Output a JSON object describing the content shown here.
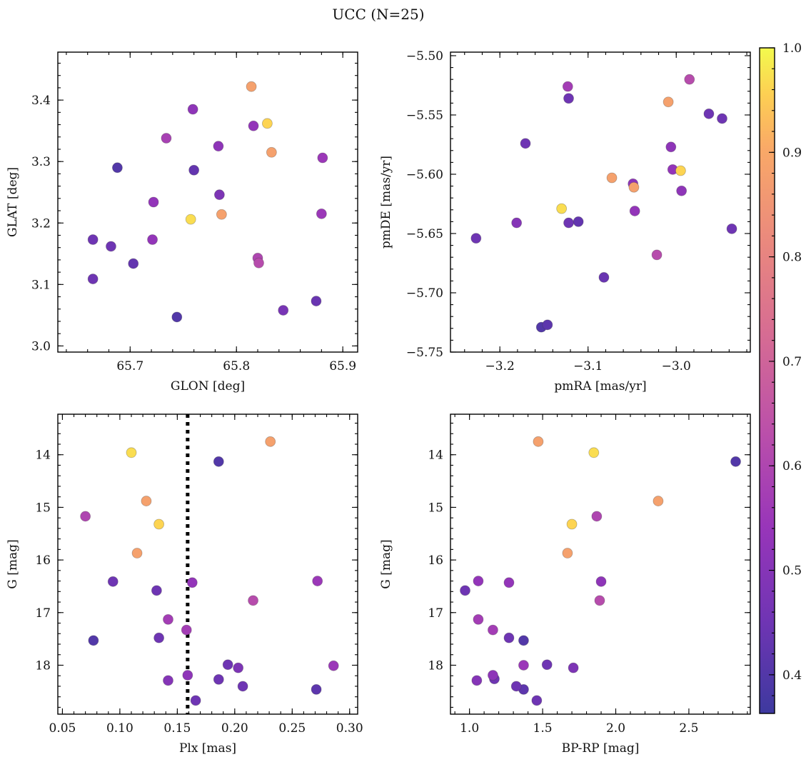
{
  "figure": {
    "title": "UCC (N=25)"
  },
  "colorbar": {
    "min": 0.363,
    "max": 1.0,
    "ticks": [
      0.4,
      0.5,
      0.6,
      0.7,
      0.8,
      0.9,
      1.0
    ],
    "tick_labels": [
      "0.4",
      "0.5",
      "0.6",
      "0.7",
      "0.8",
      "0.9",
      "1.0"
    ],
    "colormap": "plasma"
  },
  "chart_data": [
    {
      "type": "scatter",
      "id": "glon-glat",
      "xlabel": "GLON [deg]",
      "ylabel": "GLAT [deg]",
      "xlim": [
        65.632,
        65.914
      ],
      "ylim": [
        2.99,
        3.478
      ],
      "xticks": [
        65.7,
        65.8,
        65.9
      ],
      "xtick_labels": [
        "65.7",
        "65.8",
        "65.9"
      ],
      "yticks": [
        3.0,
        3.1,
        3.2,
        3.3,
        3.4
      ],
      "ytick_labels": [
        "3.0",
        "3.1",
        "3.2",
        "3.3",
        "3.4"
      ],
      "invert_y": false,
      "points": [
        {
          "x": 65.814,
          "y": 3.422,
          "c": 0.88
        },
        {
          "x": 65.829,
          "y": 3.362,
          "c": 0.96
        },
        {
          "x": 65.759,
          "y": 3.385,
          "c": 0.52
        },
        {
          "x": 65.816,
          "y": 3.358,
          "c": 0.53
        },
        {
          "x": 65.734,
          "y": 3.338,
          "c": 0.58
        },
        {
          "x": 65.783,
          "y": 3.325,
          "c": 0.52
        },
        {
          "x": 65.833,
          "y": 3.315,
          "c": 0.88
        },
        {
          "x": 65.881,
          "y": 3.306,
          "c": 0.55
        },
        {
          "x": 65.688,
          "y": 3.29,
          "c": 0.4
        },
        {
          "x": 65.76,
          "y": 3.286,
          "c": 0.43
        },
        {
          "x": 65.784,
          "y": 3.246,
          "c": 0.48
        },
        {
          "x": 65.722,
          "y": 3.234,
          "c": 0.53
        },
        {
          "x": 65.786,
          "y": 3.214,
          "c": 0.88
        },
        {
          "x": 65.88,
          "y": 3.215,
          "c": 0.55
        },
        {
          "x": 65.757,
          "y": 3.206,
          "c": 0.97
        },
        {
          "x": 65.665,
          "y": 3.173,
          "c": 0.45
        },
        {
          "x": 65.721,
          "y": 3.173,
          "c": 0.53
        },
        {
          "x": 65.682,
          "y": 3.162,
          "c": 0.45
        },
        {
          "x": 65.82,
          "y": 3.143,
          "c": 0.6
        },
        {
          "x": 65.821,
          "y": 3.135,
          "c": 0.62
        },
        {
          "x": 65.703,
          "y": 3.134,
          "c": 0.43
        },
        {
          "x": 65.665,
          "y": 3.109,
          "c": 0.45
        },
        {
          "x": 65.875,
          "y": 3.073,
          "c": 0.44
        },
        {
          "x": 65.844,
          "y": 3.058,
          "c": 0.47
        },
        {
          "x": 65.744,
          "y": 3.047,
          "c": 0.4
        }
      ]
    },
    {
      "type": "scatter",
      "id": "pmra-pmde",
      "xlabel": "pmRA [mas/yr]",
      "ylabel": "pmDE [mas/yr]",
      "xlim": [
        -3.256,
        -2.916
      ],
      "ylim": [
        -5.75,
        -5.497
      ],
      "xticks": [
        -3.2,
        -3.1,
        -3.0
      ],
      "xtick_labels": [
        "−3.2",
        "−3.1",
        "−3.0"
      ],
      "yticks": [
        -5.75,
        -5.7,
        -5.65,
        -5.6,
        -5.55,
        -5.5
      ],
      "ytick_labels": [
        "−5.75",
        "−5.70",
        "−5.65",
        "−5.60",
        "−5.55",
        "−5.50"
      ],
      "invert_y": false,
      "points": [
        {
          "x": -2.985,
          "y": -5.52,
          "c": 0.62
        },
        {
          "x": -3.123,
          "y": -5.526,
          "c": 0.57
        },
        {
          "x": -3.122,
          "y": -5.536,
          "c": 0.45
        },
        {
          "x": -3.009,
          "y": -5.539,
          "c": 0.88
        },
        {
          "x": -2.963,
          "y": -5.549,
          "c": 0.45
        },
        {
          "x": -2.948,
          "y": -5.553,
          "c": 0.45
        },
        {
          "x": -3.171,
          "y": -5.574,
          "c": 0.45
        },
        {
          "x": -3.006,
          "y": -5.577,
          "c": 0.52
        },
        {
          "x": -3.004,
          "y": -5.596,
          "c": 0.53
        },
        {
          "x": -2.995,
          "y": -5.597,
          "c": 0.96
        },
        {
          "x": -3.073,
          "y": -5.603,
          "c": 0.88
        },
        {
          "x": -3.049,
          "y": -5.608,
          "c": 0.52
        },
        {
          "x": -3.048,
          "y": -5.611,
          "c": 0.88
        },
        {
          "x": -2.994,
          "y": -5.614,
          "c": 0.52
        },
        {
          "x": -3.13,
          "y": -5.629,
          "c": 0.97
        },
        {
          "x": -3.047,
          "y": -5.631,
          "c": 0.53
        },
        {
          "x": -3.111,
          "y": -5.64,
          "c": 0.43
        },
        {
          "x": -3.122,
          "y": -5.641,
          "c": 0.45
        },
        {
          "x": -3.181,
          "y": -5.641,
          "c": 0.5
        },
        {
          "x": -2.937,
          "y": -5.646,
          "c": 0.45
        },
        {
          "x": -3.227,
          "y": -5.654,
          "c": 0.45
        },
        {
          "x": -3.022,
          "y": -5.668,
          "c": 0.62
        },
        {
          "x": -3.082,
          "y": -5.687,
          "c": 0.44
        },
        {
          "x": -3.146,
          "y": -5.727,
          "c": 0.42
        },
        {
          "x": -3.153,
          "y": -5.729,
          "c": 0.4
        }
      ]
    },
    {
      "type": "scatter",
      "id": "plx-g",
      "xlabel": "Plx [mas]",
      "ylabel": "G [mag]",
      "xlim": [
        0.046,
        0.307
      ],
      "ylim": [
        13.23,
        18.93
      ],
      "xticks": [
        0.05,
        0.1,
        0.15,
        0.2,
        0.25,
        0.3
      ],
      "xtick_labels": [
        "0.05",
        "0.10",
        "0.15",
        "0.20",
        "0.25",
        "0.30"
      ],
      "yticks": [
        14,
        15,
        16,
        17,
        18
      ],
      "ytick_labels": [
        "14",
        "15",
        "16",
        "17",
        "18"
      ],
      "invert_y": true,
      "vline": {
        "x": 0.159,
        "style": "dotted"
      },
      "points": [
        {
          "x": 0.231,
          "y": 13.75,
          "c": 0.88
        },
        {
          "x": 0.11,
          "y": 13.96,
          "c": 0.97
        },
        {
          "x": 0.186,
          "y": 14.13,
          "c": 0.4
        },
        {
          "x": 0.123,
          "y": 14.88,
          "c": 0.88
        },
        {
          "x": 0.07,
          "y": 15.17,
          "c": 0.6
        },
        {
          "x": 0.134,
          "y": 15.32,
          "c": 0.96
        },
        {
          "x": 0.115,
          "y": 15.87,
          "c": 0.88
        },
        {
          "x": 0.094,
          "y": 16.41,
          "c": 0.45
        },
        {
          "x": 0.272,
          "y": 16.4,
          "c": 0.55
        },
        {
          "x": 0.163,
          "y": 16.43,
          "c": 0.53
        },
        {
          "x": 0.132,
          "y": 16.58,
          "c": 0.45
        },
        {
          "x": 0.216,
          "y": 16.77,
          "c": 0.62
        },
        {
          "x": 0.142,
          "y": 17.13,
          "c": 0.57
        },
        {
          "x": 0.158,
          "y": 17.33,
          "c": 0.57
        },
        {
          "x": 0.134,
          "y": 17.48,
          "c": 0.45
        },
        {
          "x": 0.077,
          "y": 17.53,
          "c": 0.4
        },
        {
          "x": 0.194,
          "y": 17.99,
          "c": 0.45
        },
        {
          "x": 0.286,
          "y": 18.01,
          "c": 0.55
        },
        {
          "x": 0.203,
          "y": 18.05,
          "c": 0.48
        },
        {
          "x": 0.159,
          "y": 18.19,
          "c": 0.52
        },
        {
          "x": 0.186,
          "y": 18.27,
          "c": 0.45
        },
        {
          "x": 0.142,
          "y": 18.29,
          "c": 0.5
        },
        {
          "x": 0.207,
          "y": 18.4,
          "c": 0.45
        },
        {
          "x": 0.271,
          "y": 18.46,
          "c": 0.42
        },
        {
          "x": 0.166,
          "y": 18.67,
          "c": 0.45
        }
      ]
    },
    {
      "type": "scatter",
      "id": "bprp-g",
      "xlabel": "BP-RP [mag]",
      "ylabel": "G [mag]",
      "xlim": [
        0.87,
        2.92
      ],
      "ylim": [
        13.23,
        18.93
      ],
      "xticks": [
        1.0,
        1.5,
        2.0,
        2.5
      ],
      "xtick_labels": [
        "1.0",
        "1.5",
        "2.0",
        "2.5"
      ],
      "yticks": [
        14,
        15,
        16,
        17,
        18
      ],
      "ytick_labels": [
        "14",
        "15",
        "16",
        "17",
        "18"
      ],
      "invert_y": true,
      "points": [
        {
          "x": 1.47,
          "y": 13.75,
          "c": 0.88
        },
        {
          "x": 1.85,
          "y": 13.96,
          "c": 0.97
        },
        {
          "x": 2.82,
          "y": 14.13,
          "c": 0.4
        },
        {
          "x": 2.29,
          "y": 14.88,
          "c": 0.88
        },
        {
          "x": 1.87,
          "y": 15.17,
          "c": 0.6
        },
        {
          "x": 1.7,
          "y": 15.32,
          "c": 0.96
        },
        {
          "x": 1.67,
          "y": 15.87,
          "c": 0.88
        },
        {
          "x": 1.06,
          "y": 16.4,
          "c": 0.53
        },
        {
          "x": 1.27,
          "y": 16.43,
          "c": 0.53
        },
        {
          "x": 1.9,
          "y": 16.41,
          "c": 0.52
        },
        {
          "x": 0.97,
          "y": 16.58,
          "c": 0.45
        },
        {
          "x": 1.89,
          "y": 16.77,
          "c": 0.62
        },
        {
          "x": 1.06,
          "y": 17.13,
          "c": 0.57
        },
        {
          "x": 1.16,
          "y": 17.33,
          "c": 0.57
        },
        {
          "x": 1.27,
          "y": 17.48,
          "c": 0.45
        },
        {
          "x": 1.37,
          "y": 17.53,
          "c": 0.4
        },
        {
          "x": 1.53,
          "y": 17.99,
          "c": 0.45
        },
        {
          "x": 1.37,
          "y": 18.0,
          "c": 0.55
        },
        {
          "x": 1.71,
          "y": 18.05,
          "c": 0.48
        },
        {
          "x": 1.16,
          "y": 18.19,
          "c": 0.52
        },
        {
          "x": 1.17,
          "y": 18.26,
          "c": 0.45
        },
        {
          "x": 1.05,
          "y": 18.29,
          "c": 0.5
        },
        {
          "x": 1.32,
          "y": 18.4,
          "c": 0.45
        },
        {
          "x": 1.37,
          "y": 18.46,
          "c": 0.42
        },
        {
          "x": 1.46,
          "y": 18.67,
          "c": 0.45
        }
      ]
    }
  ]
}
